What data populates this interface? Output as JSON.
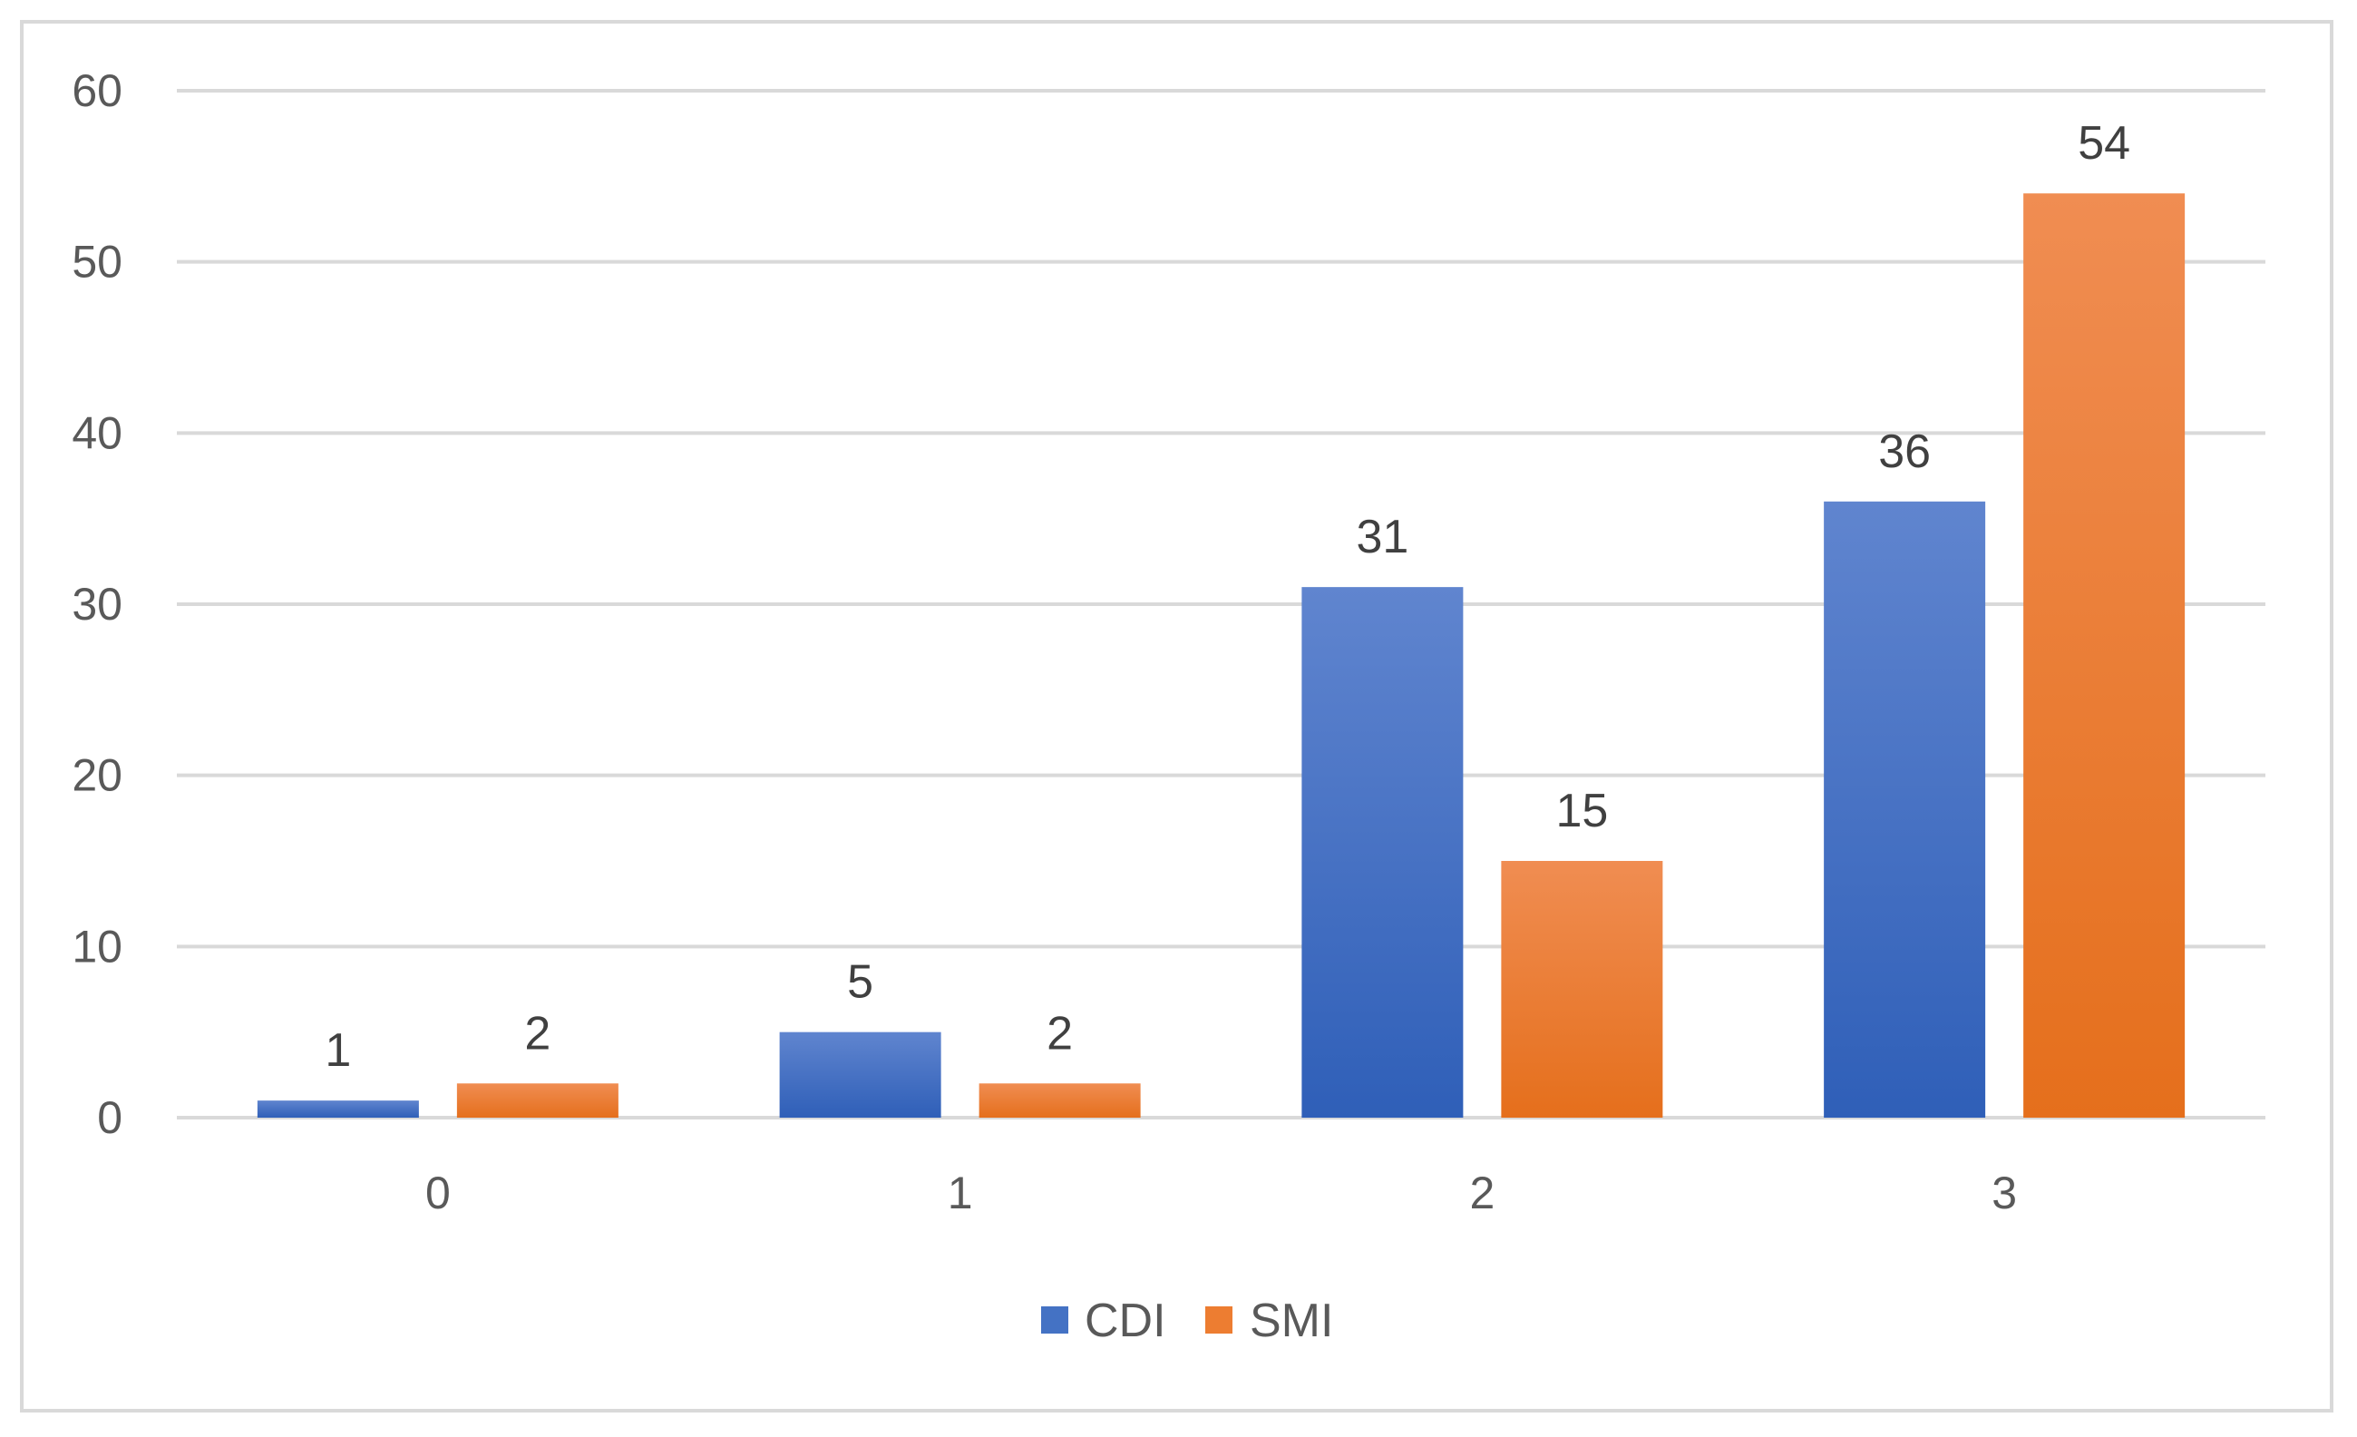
{
  "chart_data": {
    "type": "bar",
    "categories": [
      "0",
      "1",
      "2",
      "3"
    ],
    "series": [
      {
        "name": "CDI",
        "values": [
          1,
          5,
          31,
          36
        ],
        "color": "#4472c4"
      },
      {
        "name": "SMI",
        "values": [
          2,
          2,
          15,
          54
        ],
        "color": "#ed7d31"
      }
    ],
    "ylim": [
      0,
      60
    ],
    "yticks": [
      0,
      10,
      20,
      30,
      40,
      50,
      60
    ],
    "grid": true,
    "legend": "bottom-center",
    "data_labels": true
  }
}
